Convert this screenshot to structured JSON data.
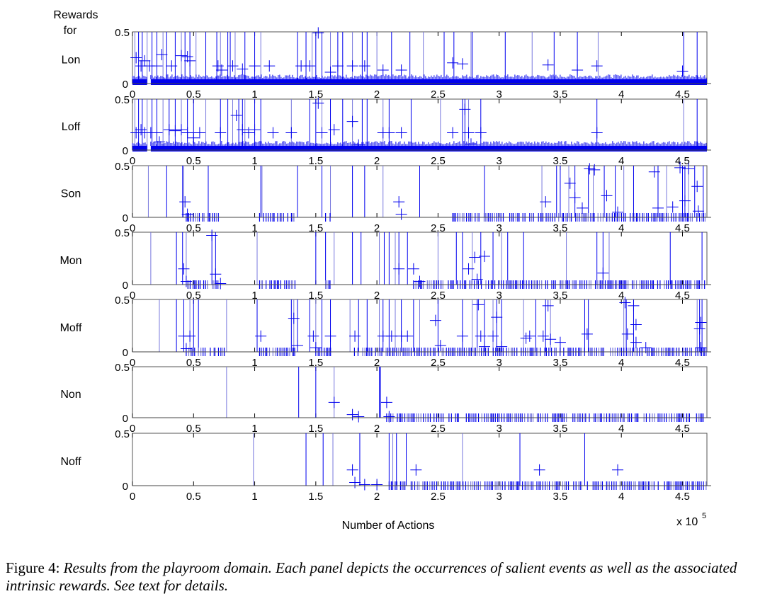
{
  "figure": {
    "y_header": [
      "Rewards",
      "for"
    ],
    "xlabel": "Number of Actions",
    "x_multiplier": "x 10",
    "x_multiplier_exp": "5",
    "ytick_labels": [
      "0",
      "0.5"
    ],
    "xtick_labels": [
      "0",
      "0.5",
      "1",
      "1.5",
      "2",
      "2.5",
      "3",
      "3.5",
      "4",
      "4.5"
    ],
    "line_color": "#0000ee",
    "light_line_color": "#7777dd"
  },
  "caption": {
    "lead": "Figure 4:",
    "text": "Results from the playroom domain. Each panel depicts the occurrences of salient events as well as the associated intrinsic rewards. See text for details."
  },
  "chart_data": {
    "type": "scatter",
    "title": "",
    "xlabel": "Number of Actions (x 10^5)",
    "ylabel": "Rewards for",
    "xlim": [
      0,
      4.7
    ],
    "ylim": [
      0,
      0.5
    ],
    "x_ticks": [
      0,
      0.5,
      1,
      1.5,
      2,
      2.5,
      3,
      3.5,
      4,
      4.5
    ],
    "y_ticks": [
      0,
      0.5
    ],
    "grid": false,
    "legend": null,
    "description": "Seven stacked panels; vertical lines mark occurrences of salient events, '+' markers show intrinsic reward values (mostly 0 to ~0.5). Thick band at 0 indicates dense low rewards.",
    "panels": [
      {
        "name": "Lon",
        "dense_ranges": [
          [
            0,
            0.12
          ],
          [
            0.15,
            4.7
          ]
        ],
        "event_lines": [
          0.02,
          0.05,
          0.08,
          0.12,
          0.16,
          0.2,
          0.25,
          0.28,
          0.35,
          0.4,
          0.43,
          0.47,
          0.52,
          0.6,
          0.69,
          0.72,
          0.78,
          0.8,
          0.84,
          0.92,
          1.0,
          1.05,
          1.35,
          1.42,
          1.47,
          1.5,
          1.55,
          1.62,
          1.68,
          1.72,
          1.8,
          1.88,
          1.92,
          2.0,
          2.12,
          2.27,
          2.38,
          2.55,
          2.63,
          2.77,
          2.78,
          3.05,
          3.27,
          3.45,
          3.64,
          3.81,
          4.51,
          4.62
        ],
        "reward_markers": [
          [
            0.03,
            0.25
          ],
          [
            0.07,
            0.17
          ],
          [
            0.1,
            0.22
          ],
          [
            0.14,
            0.17
          ],
          [
            0.2,
            0.17
          ],
          [
            0.24,
            0.28
          ],
          [
            0.32,
            0.17
          ],
          [
            0.4,
            0.27
          ],
          [
            0.45,
            0.26
          ],
          [
            0.47,
            0.22
          ],
          [
            0.7,
            0.17
          ],
          [
            0.73,
            0.13
          ],
          [
            0.82,
            0.17
          ],
          [
            0.9,
            0.14
          ],
          [
            1.0,
            0.17
          ],
          [
            1.12,
            0.17
          ],
          [
            1.38,
            0.17
          ],
          [
            1.45,
            0.17
          ],
          [
            1.52,
            0.49
          ],
          [
            1.62,
            0.11
          ],
          [
            1.68,
            0.17
          ],
          [
            1.8,
            0.17
          ],
          [
            1.9,
            0.17
          ],
          [
            2.05,
            0.13
          ],
          [
            2.2,
            0.13
          ],
          [
            2.62,
            0.2
          ],
          [
            2.7,
            0.19
          ],
          [
            3.4,
            0.18
          ],
          [
            3.64,
            0.13
          ],
          [
            3.8,
            0.17
          ],
          [
            4.5,
            0.12
          ]
        ]
      },
      {
        "name": "Loff",
        "dense_ranges": [
          [
            0,
            0.12
          ],
          [
            0.15,
            4.7
          ]
        ],
        "event_lines": [
          0.02,
          0.05,
          0.08,
          0.12,
          0.16,
          0.2,
          0.25,
          0.3,
          0.35,
          0.4,
          0.45,
          0.5,
          0.6,
          0.72,
          0.78,
          0.82,
          0.87,
          0.9,
          0.92,
          1.0,
          1.05,
          1.3,
          1.45,
          1.5,
          1.55,
          1.62,
          1.72,
          1.8,
          1.88,
          1.92,
          2.05,
          2.1,
          2.28,
          2.52,
          2.7,
          2.72,
          2.75,
          2.85,
          3.8,
          4.51,
          4.62
        ],
        "reward_markers": [
          [
            0.03,
            0.17
          ],
          [
            0.07,
            0.2
          ],
          [
            0.1,
            0.17
          ],
          [
            0.15,
            0.17
          ],
          [
            0.2,
            0.17
          ],
          [
            0.22,
            0.08
          ],
          [
            0.3,
            0.2
          ],
          [
            0.35,
            0.19
          ],
          [
            0.4,
            0.2
          ],
          [
            0.45,
            0.17
          ],
          [
            0.5,
            0.12
          ],
          [
            0.55,
            0.17
          ],
          [
            0.72,
            0.17
          ],
          [
            0.85,
            0.34
          ],
          [
            0.9,
            0.2
          ],
          [
            0.95,
            0.17
          ],
          [
            1.0,
            0.2
          ],
          [
            1.15,
            0.17
          ],
          [
            1.3,
            0.17
          ],
          [
            1.52,
            0.46
          ],
          [
            1.55,
            0.17
          ],
          [
            1.65,
            0.2
          ],
          [
            1.8,
            0.28
          ],
          [
            1.85,
            0.05
          ],
          [
            2.05,
            0.17
          ],
          [
            2.1,
            0.17
          ],
          [
            2.2,
            0.17
          ],
          [
            2.62,
            0.17
          ],
          [
            2.72,
            0.4
          ],
          [
            2.75,
            0.17
          ],
          [
            2.77,
            0.06
          ],
          [
            2.85,
            0.17
          ],
          [
            3.8,
            0.17
          ]
        ]
      },
      {
        "name": "Son",
        "dense_ranges": [
          [
            0.44,
            0.72
          ],
          [
            1.04,
            1.34
          ],
          [
            1.58,
            1.63
          ],
          [
            2.6,
            4.7
          ]
        ],
        "event_lines": [
          0.13,
          0.28,
          0.41,
          0.42,
          0.62,
          1.05,
          1.06,
          1.35,
          1.55,
          1.62,
          1.8,
          1.9,
          2.05,
          2.35,
          2.88,
          3.35,
          3.47,
          3.5,
          3.57,
          3.62,
          3.73,
          3.77,
          3.86,
          3.95,
          4.02,
          4.1,
          4.3,
          4.37,
          4.5,
          4.52,
          4.55,
          4.6,
          4.67
        ],
        "reward_markers": [
          [
            0.43,
            0.15
          ],
          [
            0.45,
            0.03
          ],
          [
            2.18,
            0.15
          ],
          [
            2.2,
            0.03
          ],
          [
            3.38,
            0.15
          ],
          [
            3.58,
            0.33
          ],
          [
            3.62,
            0.19
          ],
          [
            3.68,
            0.09
          ],
          [
            3.74,
            0.47
          ],
          [
            3.78,
            0.46
          ],
          [
            3.88,
            0.21
          ],
          [
            3.97,
            0.05
          ],
          [
            4.27,
            0.44
          ],
          [
            4.3,
            0.09
          ],
          [
            4.42,
            0.1
          ],
          [
            4.48,
            0.48
          ],
          [
            4.52,
            0.16
          ],
          [
            4.55,
            0.47
          ],
          [
            4.62,
            0.3
          ],
          [
            4.63,
            0.06
          ]
        ]
      },
      {
        "name": "Mon",
        "dense_ranges": [
          [
            0.45,
            0.72
          ],
          [
            1.04,
            1.34
          ],
          [
            1.58,
            1.63
          ],
          [
            2.3,
            4.7
          ]
        ],
        "event_lines": [
          0.15,
          0.36,
          0.41,
          0.44,
          0.65,
          0.68,
          1.02,
          1.5,
          1.58,
          1.65,
          1.8,
          1.87,
          2.02,
          2.06,
          2.1,
          2.15,
          2.18,
          2.25,
          2.5,
          2.65,
          2.7,
          2.78,
          2.85,
          2.95,
          3.02,
          3.07,
          3.2,
          3.55,
          3.8,
          3.85,
          3.9,
          4.4,
          4.66
        ],
        "reward_markers": [
          [
            0.42,
            0.15
          ],
          [
            0.44,
            0.03
          ],
          [
            0.65,
            0.47
          ],
          [
            0.68,
            0.1
          ],
          [
            0.72,
            0.01
          ],
          [
            2.18,
            0.15
          ],
          [
            2.3,
            0.15
          ],
          [
            2.35,
            0.03
          ],
          [
            2.75,
            0.15
          ],
          [
            2.8,
            0.26
          ],
          [
            2.82,
            0.05
          ],
          [
            2.88,
            0.27
          ],
          [
            3.85,
            0.11
          ]
        ]
      },
      {
        "name": "Moff",
        "dense_ranges": [
          [
            0.44,
            0.77
          ],
          [
            1.04,
            1.34
          ],
          [
            1.5,
            1.63
          ],
          [
            1.8,
            4.7
          ]
        ],
        "event_lines": [
          0.22,
          0.36,
          0.42,
          0.47,
          0.5,
          0.54,
          0.77,
          1.02,
          1.3,
          1.32,
          1.35,
          1.45,
          1.5,
          1.55,
          1.62,
          1.78,
          1.85,
          1.92,
          2.02,
          2.05,
          2.1,
          2.15,
          2.2,
          2.3,
          2.35,
          2.5,
          2.7,
          2.78,
          2.82,
          2.88,
          2.95,
          2.98,
          3.02,
          3.2,
          3.3,
          3.38,
          3.42,
          3.7,
          3.73,
          4.02,
          4.04,
          4.1,
          4.62,
          4.64,
          4.66
        ],
        "reward_markers": [
          [
            0.42,
            0.15
          ],
          [
            0.47,
            0.15
          ],
          [
            0.44,
            0.03
          ],
          [
            1.05,
            0.15
          ],
          [
            1.32,
            0.32
          ],
          [
            1.35,
            0.06
          ],
          [
            1.48,
            0.15
          ],
          [
            1.5,
            0.04
          ],
          [
            1.62,
            0.15
          ],
          [
            1.82,
            0.15
          ],
          [
            2.05,
            0.15
          ],
          [
            2.12,
            0.15
          ],
          [
            2.2,
            0.15
          ],
          [
            2.25,
            0.15
          ],
          [
            2.48,
            0.3
          ],
          [
            2.52,
            0.06
          ],
          [
            2.7,
            0.15
          ],
          [
            2.83,
            0.45
          ],
          [
            2.85,
            0.15
          ],
          [
            2.88,
            0.05
          ],
          [
            2.95,
            0.15
          ],
          [
            2.98,
            0.33
          ],
          [
            3.02,
            0.05
          ],
          [
            3.22,
            0.13
          ],
          [
            3.25,
            0.15
          ],
          [
            3.36,
            0.15
          ],
          [
            3.4,
            0.44
          ],
          [
            3.42,
            0.12
          ],
          [
            3.5,
            0.09
          ],
          [
            3.72,
            0.17
          ],
          [
            4.03,
            0.47
          ],
          [
            4.05,
            0.17
          ],
          [
            4.1,
            0.44
          ],
          [
            4.12,
            0.26
          ],
          [
            4.12,
            0.09
          ],
          [
            4.2,
            0.04
          ],
          [
            4.64,
            0.22
          ],
          [
            4.65,
            0.28
          ],
          [
            4.65,
            0.04
          ]
        ]
      },
      {
        "name": "Non",
        "dense_ranges": [
          [
            2.08,
            4.7
          ]
        ],
        "event_lines": [
          0.77,
          1.36,
          1.5,
          1.65,
          2.02,
          2.03
        ],
        "reward_markers": [
          [
            1.65,
            0.15
          ],
          [
            1.8,
            0.03
          ],
          [
            1.85,
            0.01
          ],
          [
            2.08,
            0.15
          ],
          [
            2.1,
            0.01
          ]
        ]
      },
      {
        "name": "Noff",
        "dense_ranges": [
          [
            2.1,
            4.7
          ]
        ],
        "event_lines": [
          0.99,
          1.42,
          1.56,
          1.64,
          1.86,
          2.1,
          2.13,
          2.16,
          2.24,
          2.7,
          3.17,
          3.7
        ],
        "reward_markers": [
          [
            1.8,
            0.15
          ],
          [
            1.82,
            0.03
          ],
          [
            1.9,
            0.01
          ],
          [
            2.0,
            0.01
          ],
          [
            2.32,
            0.15
          ],
          [
            3.33,
            0.15
          ],
          [
            3.97,
            0.15
          ]
        ]
      }
    ]
  }
}
